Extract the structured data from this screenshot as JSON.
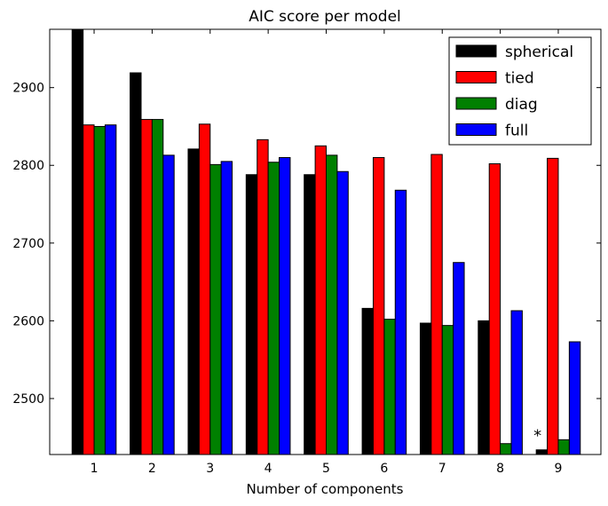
{
  "chart_data": {
    "type": "bar",
    "title": "AIC score per model",
    "xlabel": "Number of components",
    "ylabel": "",
    "categories": [
      "1",
      "2",
      "3",
      "4",
      "5",
      "6",
      "7",
      "8",
      "9"
    ],
    "ylim": [
      2428,
      2975
    ],
    "yticks": [
      "2500",
      "2600",
      "2700",
      "2800",
      "2900"
    ],
    "grid": false,
    "legend_position": "top-right",
    "series": [
      {
        "name": "spherical",
        "color": "#000000",
        "values": [
          2975,
          2919,
          2821,
          2788,
          2788,
          2616,
          2597,
          2600,
          2434
        ]
      },
      {
        "name": "tied",
        "color": "#ff0000",
        "values": [
          2852,
          2859,
          2853,
          2833,
          2825,
          2810,
          2814,
          2802,
          2809
        ]
      },
      {
        "name": "diag",
        "color": "#008000",
        "values": [
          2850,
          2859,
          2801,
          2804,
          2813,
          2602,
          2594,
          2442,
          2447
        ]
      },
      {
        "name": "full",
        "color": "#0000ff",
        "values": [
          2852,
          2813,
          2805,
          2810,
          2792,
          2768,
          2675,
          2613,
          2573
        ]
      }
    ],
    "annotations": [
      {
        "text": "*",
        "category": "9",
        "value": 2450
      }
    ]
  }
}
